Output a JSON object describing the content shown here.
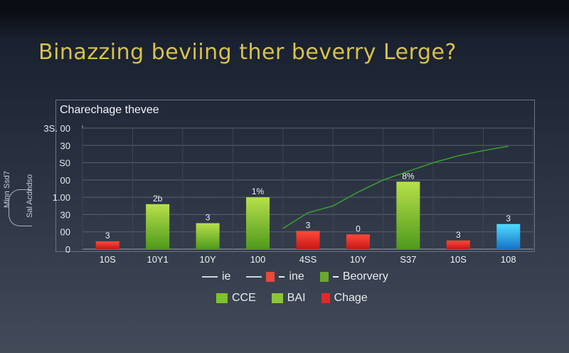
{
  "title": "Binazzing beviing ther beverry Lerge?",
  "side_labels": [
    "Minn Ssd7",
    "Sal Acdndso"
  ],
  "chart_data": {
    "type": "bar",
    "title": "Charechage thevee",
    "y_ticks": [
      "0",
      "00",
      "30",
      "1.00",
      "00",
      "S0",
      "30",
      "3S. 00"
    ],
    "ylim": [
      0,
      7
    ],
    "categories": [
      "10S",
      "10Y1",
      "10Y",
      "100",
      "4SS",
      "10Y",
      "S37",
      "10S",
      "108"
    ],
    "values": [
      0.45,
      2.6,
      1.5,
      3.0,
      1.05,
      0.85,
      3.9,
      0.5,
      1.45
    ],
    "colors": [
      "#e02a2a",
      "#7fbf2a",
      "#7fbf2a",
      "#7fbf2a",
      "#e02a2a",
      "#e02a2a",
      "#7fbf2a",
      "#e02a2a",
      "#29b6e8"
    ],
    "data_labels": [
      "3",
      "2b",
      "3",
      "1%",
      "3",
      "0",
      "8%",
      "3",
      "3"
    ],
    "line_series": {
      "color": "#3d9a2f",
      "x": [
        4,
        4.5,
        5,
        5.5,
        6,
        6.5,
        7,
        7.5,
        8,
        8.5
      ],
      "values": [
        1.2,
        2.1,
        2.5,
        3.3,
        4.0,
        4.5,
        5.0,
        5.4,
        5.7,
        5.95
      ]
    },
    "grid": true
  },
  "legend": {
    "row1": [
      {
        "label": "ie",
        "swatch": "line",
        "color": "#cfd3da"
      },
      {
        "label": "ine",
        "swatch": "box",
        "color": "#e84a3c"
      },
      {
        "label": "Beorvery",
        "swatch": "box",
        "color": "#6aa82c"
      }
    ],
    "row2": [
      {
        "label": "CCE",
        "swatch": "box",
        "color": "#7fc22a"
      },
      {
        "label": "BAI",
        "swatch": "box",
        "color": "#8cc53a"
      },
      {
        "label": "Chage",
        "swatch": "box",
        "color": "#e02a2a"
      }
    ]
  }
}
